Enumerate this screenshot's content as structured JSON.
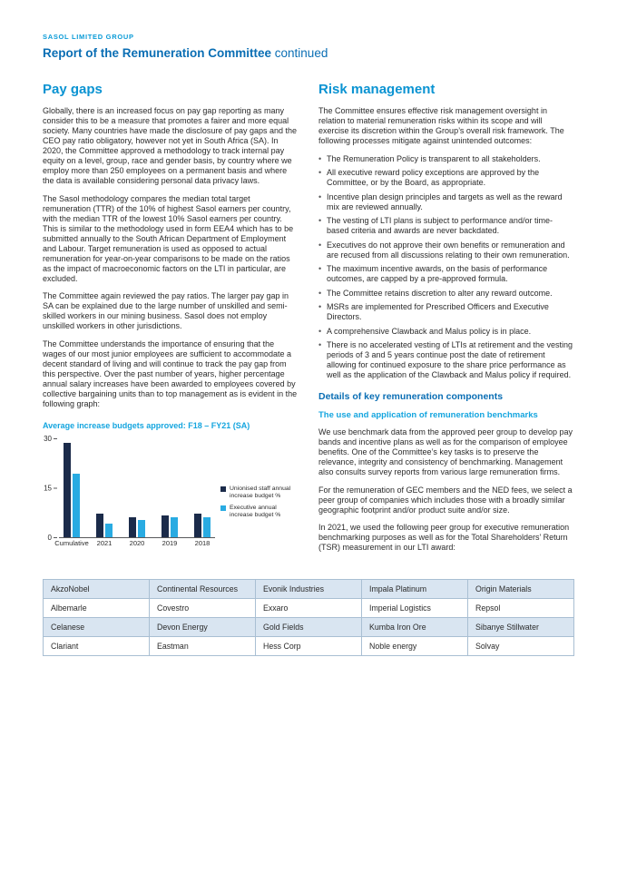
{
  "page": {
    "eyebrow": "SASOL LIMITED GROUP",
    "title": "Report of the Remuneration Committee",
    "title_suffix": " continued"
  },
  "colors": {
    "eyebrow_blue": "#0a9bd7",
    "title_blue": "#0a6eb4",
    "section_blue": "#0a93d2",
    "accent_blue": "#14a5df",
    "body_text": "#2b2b2b",
    "table_shade": "#d9e5f1",
    "table_border": "#a9bfd3",
    "axis_gray": "#58595b"
  },
  "pay_gaps": {
    "heading": "Pay gaps",
    "paragraphs": [
      "Globally, there is an increased focus on pay gap reporting as many consider this to be a measure that promotes a fairer and more equal society. Many countries have made the disclosure of pay gaps and the CEO pay ratio obligatory, however not yet in South Africa (SA). In 2020, the Committee approved a methodology to track internal pay equity on a level, group, race and gender basis, by country where we employ more than 250 employees on a permanent basis and where the data is available considering personal data privacy laws.",
      "The Sasol methodology compares the median total target remuneration (TTR) of the 10% of highest Sasol earners per country, with the median TTR of the lowest 10% Sasol earners per country. This is similar to the methodology used in form EEA4 which has to be submitted annually to the South African Department of Employment and Labour. Target remuneration is used as opposed to actual remuneration for year-on-year comparisons to be made on the ratios as the impact of macroeconomic factors on the LTI in particular, are excluded.",
      "The Committee again reviewed the pay ratios. The larger pay gap in SA can be explained due to the large number of unskilled and semi-skilled workers in our mining business. Sasol does not employ unskilled workers in other jurisdictions.",
      "The Committee understands the importance of ensuring that the wages of our most junior employees are sufficient to accommodate a decent standard of living and will continue to track the pay gap from this perspective. Over the past number of years, higher percentage annual salary increases have been awarded to employees covered by collective bargaining units than to top management as is evident in the following graph:"
    ],
    "chart_title": "Average increase budgets approved: F18 – FY21 (SA)"
  },
  "chart_data": {
    "type": "bar",
    "title": "Average increase budgets approved: F18 – FY21 (SA)",
    "categories": [
      "Cumulative",
      "2021",
      "2020",
      "2019",
      "2018"
    ],
    "series": [
      {
        "name": "Unionised staff annual increase budget %",
        "color": "#1b2b4a",
        "values": [
          28.5,
          7,
          6,
          6.5,
          7
        ]
      },
      {
        "name": "Executive annual increase budget %",
        "color": "#29abe2",
        "values": [
          19,
          4,
          5,
          6,
          6
        ]
      }
    ],
    "xlabel": "",
    "ylabel": "",
    "ylim": [
      0,
      30
    ],
    "yticks": [
      0,
      15,
      30
    ],
    "grid": false,
    "legend_position": "right"
  },
  "risk": {
    "heading": "Risk management",
    "intro": "The Committee ensures effective risk management oversight in relation to material remuneration risks within its scope and will exercise its discretion within the Group’s overall risk framework. The following processes mitigate against unintended outcomes:",
    "bullets": [
      "The Remuneration Policy is transparent to all stakeholders.",
      "All executive reward policy exceptions are approved by the Committee, or by the Board, as appropriate.",
      "Incentive plan design principles and targets as well as the reward mix are reviewed annually.",
      "The vesting of LTI plans is subject to performance and/or time-based criteria and awards are never backdated.",
      "Executives do not approve their own benefits or remuneration and are recused from all discussions relating to their own remuneration.",
      "The maximum incentive awards, on the basis of performance outcomes, are capped by a pre-approved formula.",
      "The Committee retains discretion to alter any reward outcome.",
      "MSRs are implemented for Prescribed Officers and Executive Directors.",
      "A comprehensive Clawback and Malus policy is in place.",
      "There is no accelerated vesting of LTIs at retirement and the vesting periods of 3 and 5 years continue post the date of retirement allowing for continued exposure to the share price performance as well as the application of the Clawback and Malus policy if required."
    ],
    "details_heading": "Details of key remuneration components",
    "benchmarks_heading": "The use and application of remuneration benchmarks",
    "paragraphs": [
      "We use benchmark data from the approved peer group to develop pay bands and incentive plans as well as for the comparison of employee benefits. One of the Committee’s key tasks is to preserve the relevance, integrity and consistency of benchmarking. Management also consults survey reports from various large remuneration firms.",
      "For the remuneration of GEC members and the NED fees, we select a peer group of companies which includes those with a broadly similar geographic footprint and/or product suite and/or size.",
      "In 2021, we used the following peer group for executive remuneration benchmarking purposes as well as for the Total Shareholders’ Return (TSR) measurement in our LTI award:"
    ]
  },
  "peer_table": {
    "rows": [
      [
        "AkzoNobel",
        "Continental Resources",
        "Evonik Industries",
        "Impala Platinum",
        "Origin Materials"
      ],
      [
        "Albemarle",
        "Covestro",
        "Exxaro",
        "Imperial Logistics",
        "Repsol"
      ],
      [
        "Celanese",
        "Devon Energy",
        "Gold Fields",
        "Kumba Iron Ore",
        "Sibanye Stillwater"
      ],
      [
        "Clariant",
        "Eastman",
        "Hess Corp",
        "Noble energy",
        "Solvay"
      ]
    ]
  }
}
